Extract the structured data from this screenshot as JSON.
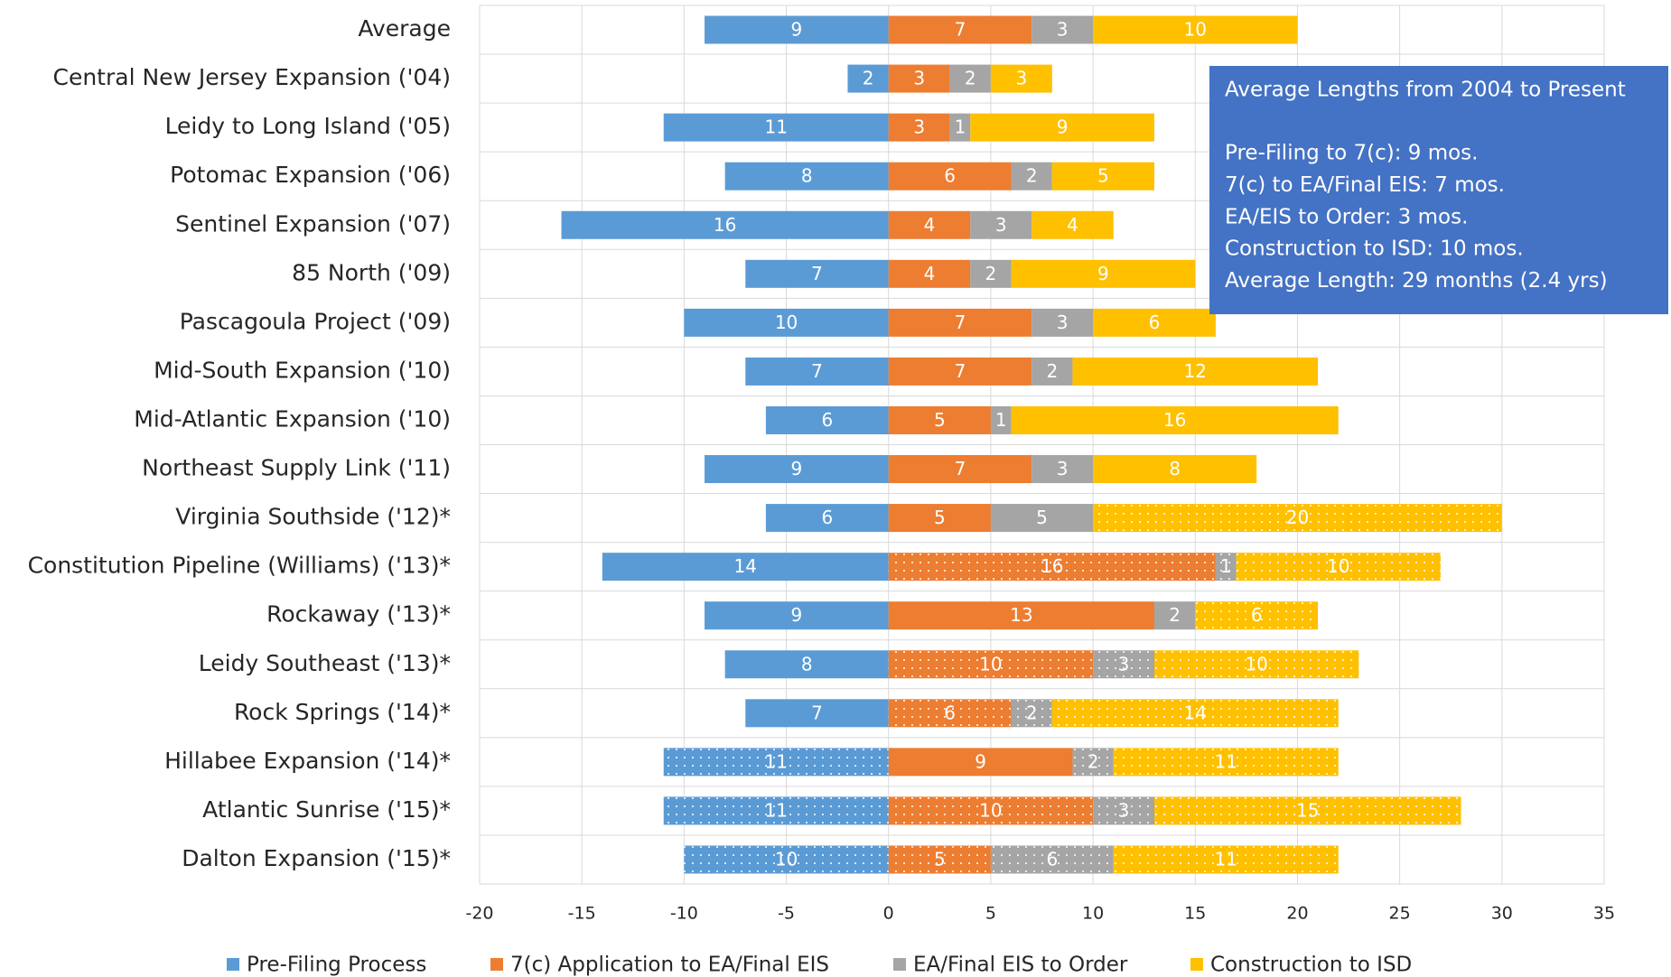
{
  "chart_data": {
    "type": "bar",
    "orientation": "horizontal",
    "stacked": true,
    "categories": [
      "Average",
      "Central New Jersey Expansion ('04)",
      "Leidy to Long Island ('05)",
      "Potomac Expansion ('06)",
      "Sentinel Expansion ('07)",
      "85 North ('09)",
      "Pascagoula Project ('09)",
      "Mid-South Expansion ('10)",
      "Mid-Atlantic Expansion ('10)",
      "Northeast Supply Link ('11)",
      "Virginia Southside ('12)*",
      "Constitution Pipeline (Williams) ('13)*",
      "Rockaway ('13)*",
      "Leidy Southeast ('13)*",
      "Rock Springs ('14)*",
      "Hillabee Expansion ('14)*",
      "Atlantic Sunrise ('15)*",
      "Dalton Expansion ('15)*"
    ],
    "series": [
      {
        "name": "Pre-Filing Process",
        "color": "#5b9bd5",
        "values": [
          -9,
          -2,
          -11,
          -8,
          -16,
          -7,
          -10,
          -7,
          -6,
          -9,
          -6,
          -14,
          -9,
          -8,
          -7,
          -11,
          -11,
          -10
        ],
        "value_labels": [
          "9",
          "2",
          "11",
          "8",
          "16",
          "7",
          "10",
          "7",
          "6",
          "9",
          "6",
          "14",
          "9",
          "8",
          "7",
          "11",
          "11",
          "10"
        ],
        "dotted": [
          false,
          false,
          false,
          false,
          false,
          false,
          false,
          false,
          false,
          false,
          false,
          false,
          false,
          false,
          false,
          true,
          true,
          true
        ]
      },
      {
        "name": "7(c) Application to EA/Final EIS",
        "color": "#ed7d31",
        "values": [
          7,
          3,
          3,
          6,
          4,
          4,
          7,
          7,
          5,
          7,
          5,
          16,
          13,
          10,
          6,
          9,
          10,
          5
        ],
        "dotted": [
          false,
          false,
          false,
          false,
          false,
          false,
          false,
          false,
          false,
          false,
          false,
          true,
          false,
          true,
          true,
          false,
          true,
          true
        ]
      },
      {
        "name": "EA/Final EIS to Order",
        "color": "#a5a5a5",
        "values": [
          3,
          2,
          1,
          2,
          3,
          2,
          3,
          2,
          1,
          3,
          5,
          1,
          2,
          3,
          2,
          2,
          3,
          6
        ],
        "dotted": [
          false,
          false,
          false,
          false,
          false,
          false,
          false,
          false,
          false,
          false,
          false,
          true,
          false,
          true,
          true,
          true,
          true,
          true
        ]
      },
      {
        "name": "Construction to ISD",
        "color": "#ffc000",
        "values": [
          10,
          3,
          9,
          5,
          4,
          9,
          6,
          12,
          16,
          8,
          20,
          10,
          6,
          10,
          14,
          11,
          15,
          11
        ],
        "dotted": [
          false,
          false,
          false,
          false,
          false,
          false,
          false,
          false,
          false,
          false,
          true,
          true,
          true,
          true,
          true,
          true,
          true,
          true
        ]
      }
    ],
    "xlim": [
      -20,
      35
    ],
    "xticks": [
      -20,
      -15,
      -10,
      -5,
      0,
      5,
      10,
      15,
      20,
      25,
      30,
      35
    ],
    "grid": true,
    "legend": "bottom",
    "annotation": {
      "title": "Average Lengths from 2004 to Present",
      "lines": [
        "Pre-Filing to 7(c): 9 mos.",
        "7(c) to EA/Final EIS: 7 mos.",
        "EA/EIS to Order: 3 mos.",
        "Construction to ISD: 10 mos.",
        "Average Length: 29 months (2.4 yrs)"
      ],
      "color": "#4472c4"
    }
  }
}
